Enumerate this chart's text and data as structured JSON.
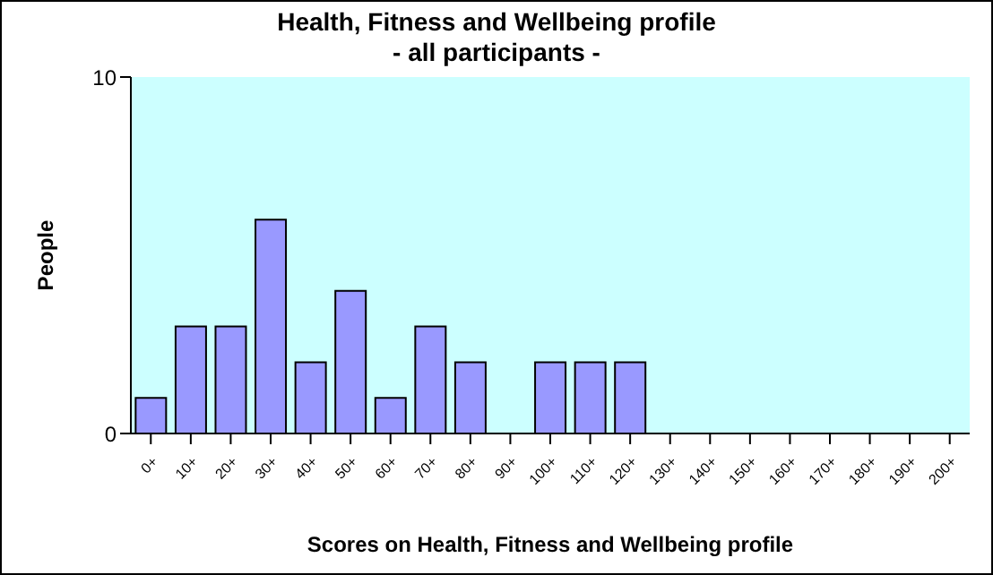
{
  "chart_data": {
    "type": "bar",
    "title": "Health, Fitness and Wellbeing profile",
    "subtitle": "- all participants -",
    "xlabel": "Scores on Health, Fitness and Wellbeing profile",
    "ylabel": "People",
    "categories": [
      "0+",
      "10+",
      "20+",
      "30+",
      "40+",
      "50+",
      "60+",
      "70+",
      "80+",
      "90+",
      "100+",
      "110+",
      "120+",
      "130+",
      "140+",
      "150+",
      "160+",
      "170+",
      "180+",
      "190+",
      "200+"
    ],
    "values": [
      1,
      3,
      3,
      6,
      2,
      4,
      1,
      3,
      2,
      0,
      2,
      2,
      2,
      0,
      0,
      0,
      0,
      0,
      0,
      0,
      0
    ],
    "color": "#9999ff",
    "ylim": [
      0,
      10
    ],
    "yticks": [
      0,
      10
    ],
    "grid": false,
    "legend": false
  }
}
